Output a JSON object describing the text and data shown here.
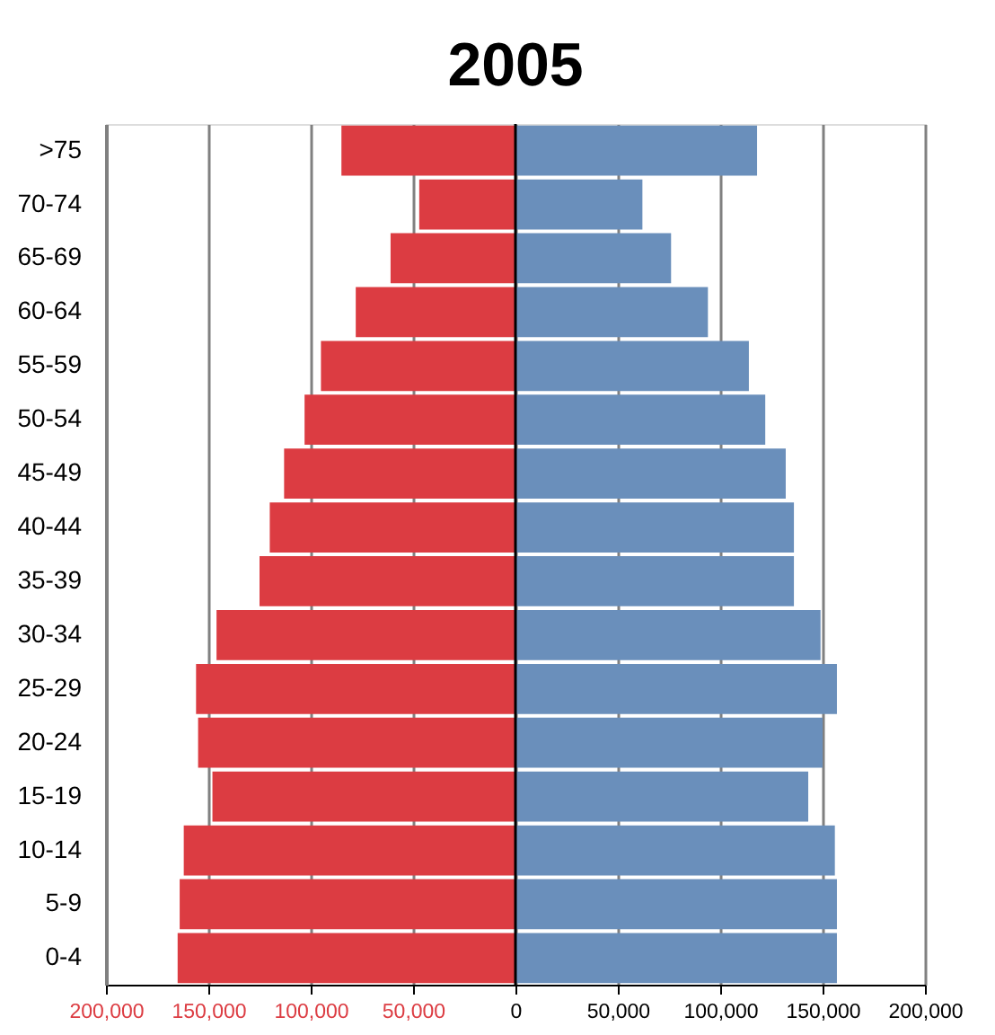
{
  "chart_data": {
    "type": "bar",
    "orientation": "horizontal",
    "stacked": true,
    "title": "2005",
    "categories": [
      ">75",
      "70-74",
      "65-69",
      "60-64",
      "55-59",
      "50-54",
      "45-49",
      "40-44",
      "35-39",
      "30-34",
      "25-29",
      "20-24",
      "15-19",
      "10-14",
      "5-9",
      "0-4"
    ],
    "series": [
      {
        "color": "#dc3c42",
        "values": [
          -85000,
          -47000,
          -61000,
          -78000,
          -95000,
          -103000,
          -113000,
          -120000,
          -125000,
          -146000,
          -156000,
          -155000,
          -148000,
          -162000,
          -164000,
          -165000
        ]
      },
      {
        "color": "#6a8fbb",
        "values": [
          118000,
          62000,
          76000,
          94000,
          114000,
          122000,
          132000,
          136000,
          136000,
          149000,
          157000,
          150000,
          143000,
          156000,
          157000,
          157000
        ]
      }
    ],
    "xlim": [
      -200000,
      200000
    ],
    "xticks": [
      {
        "value": -200000,
        "label": "200,000"
      },
      {
        "value": -150000,
        "label": "150,000"
      },
      {
        "value": -100000,
        "label": "100,000"
      },
      {
        "value": -50000,
        "label": "50,000"
      },
      0,
      {
        "value": 50000,
        "label": "50,000"
      },
      {
        "value": 100000,
        "label": "100,000"
      },
      {
        "value": 150000,
        "label": "150,000"
      },
      {
        "value": 200000,
        "label": "200,000"
      }
    ],
    "grid": "x",
    "legend": false
  }
}
